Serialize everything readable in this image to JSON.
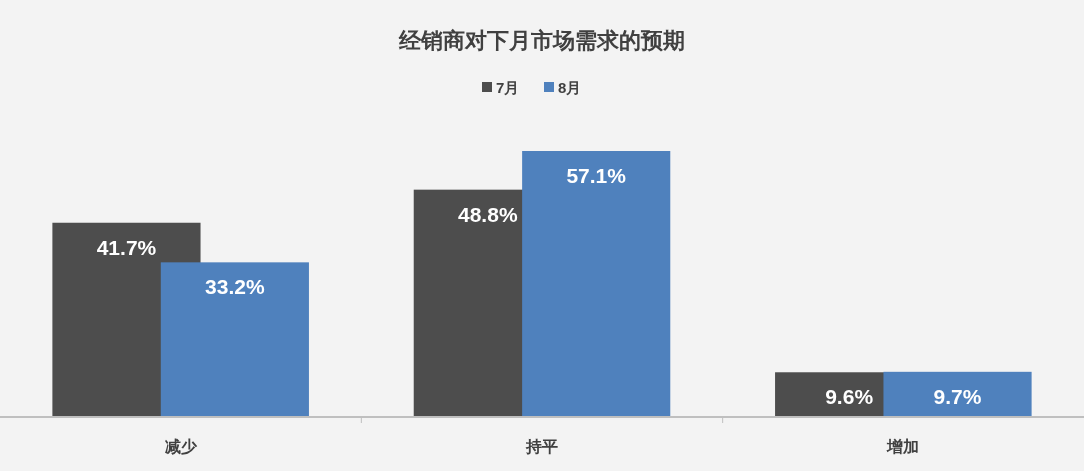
{
  "chart_data": {
    "type": "bar",
    "title": "经销商对下月市场需求的预期",
    "categories": [
      "减少",
      "持平",
      "增加"
    ],
    "series": [
      {
        "name": "7月",
        "color": "#4d4d4d",
        "values": [
          41.7,
          48.8,
          9.6
        ],
        "value_labels": [
          "41.7%",
          "48.8%",
          "9.6%"
        ]
      },
      {
        "name": "8月",
        "color": "#4f81bd",
        "values": [
          33.2,
          57.1,
          9.7
        ],
        "value_labels": [
          "33.2%",
          "57.1%",
          "9.7%"
        ]
      }
    ],
    "legend": "top"
  }
}
